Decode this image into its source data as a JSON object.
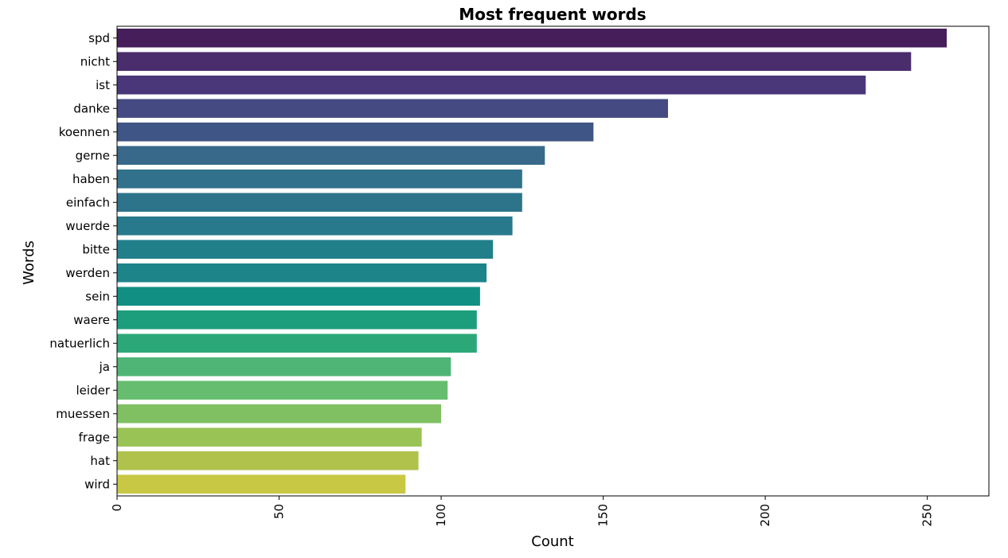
{
  "chart_data": {
    "type": "bar",
    "orientation": "horizontal",
    "title": "Most frequent words",
    "xlabel": "Count",
    "ylabel": "Words",
    "xlim": [
      0,
      269
    ],
    "xticks": [
      0,
      50,
      100,
      150,
      200,
      250
    ],
    "grid": false,
    "legend": "none",
    "categories": [
      "spd",
      "nicht",
      "ist",
      "danke",
      "koennen",
      "gerne",
      "haben",
      "einfach",
      "wuerde",
      "bitte",
      "werden",
      "sein",
      "waere",
      "natuerlich",
      "ja",
      "leider",
      "muessen",
      "frage",
      "hat",
      "wird"
    ],
    "values": [
      256,
      245,
      231,
      170,
      147,
      132,
      125,
      125,
      122,
      116,
      114,
      112,
      111,
      111,
      103,
      102,
      100,
      94,
      93,
      89
    ],
    "colors": [
      "#451e5a",
      "#4a2d6c",
      "#49377a",
      "#454a82",
      "#3f5585",
      "#39698a",
      "#31718b",
      "#2d748b",
      "#28798b",
      "#217f8a",
      "#1d8489",
      "#128f83",
      "#1c9d7b",
      "#2ca878",
      "#4fb576",
      "#67bd6f",
      "#80c063",
      "#9ac356",
      "#b0c24b",
      "#c8c845"
    ]
  }
}
